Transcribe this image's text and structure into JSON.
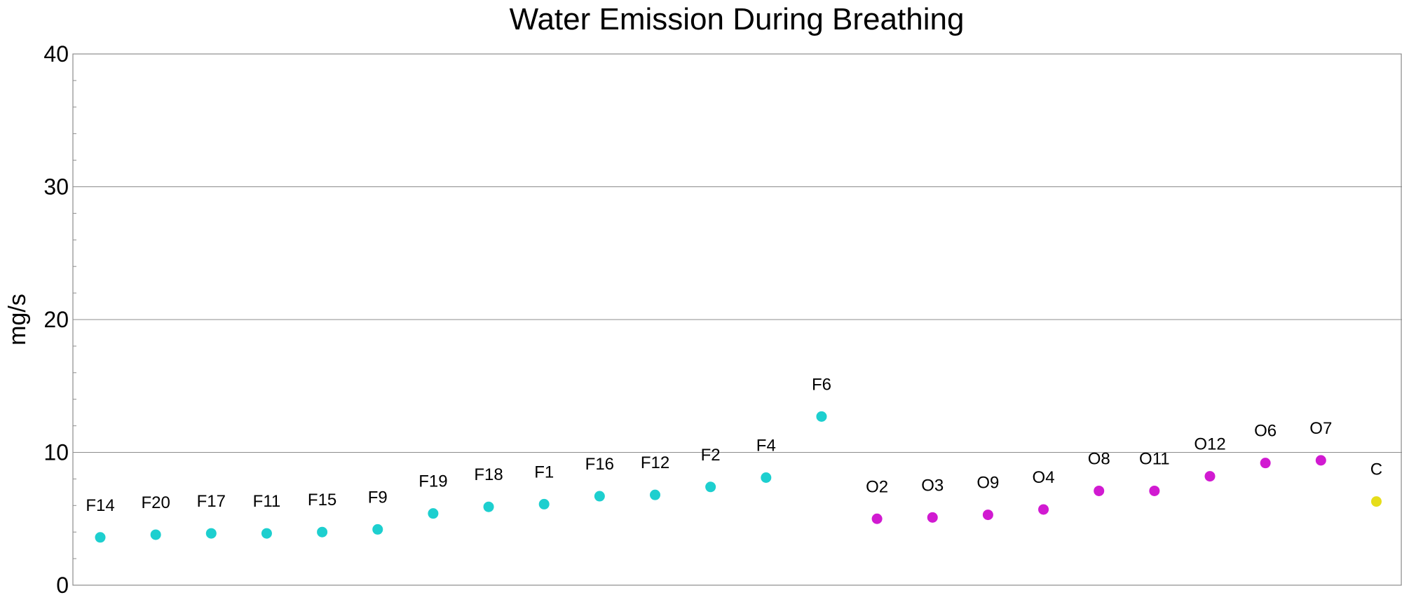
{
  "chart_data": {
    "type": "scatter",
    "title": "Water Emission During Breathing",
    "ylabel": "mg/s",
    "xlabel": "",
    "ylim": [
      0,
      40
    ],
    "yticks": [
      0,
      10,
      20,
      30,
      40
    ],
    "grid": true,
    "legend": "none",
    "colors": {
      "F": "#1dcfcf",
      "O": "#d11ad1",
      "C": "#e6dd1a"
    },
    "points": [
      {
        "label": "F14",
        "group": "F",
        "value": 3.6
      },
      {
        "label": "F20",
        "group": "F",
        "value": 3.8
      },
      {
        "label": "F17",
        "group": "F",
        "value": 3.9
      },
      {
        "label": "F11",
        "group": "F",
        "value": 3.9
      },
      {
        "label": "F15",
        "group": "F",
        "value": 4.0
      },
      {
        "label": "F9",
        "group": "F",
        "value": 4.2
      },
      {
        "label": "F19",
        "group": "F",
        "value": 5.4
      },
      {
        "label": "F18",
        "group": "F",
        "value": 5.9
      },
      {
        "label": "F1",
        "group": "F",
        "value": 6.1
      },
      {
        "label": "F16",
        "group": "F",
        "value": 6.7
      },
      {
        "label": "F12",
        "group": "F",
        "value": 6.8
      },
      {
        "label": "F2",
        "group": "F",
        "value": 7.4
      },
      {
        "label": "F4",
        "group": "F",
        "value": 8.1
      },
      {
        "label": "F6",
        "group": "F",
        "value": 12.7
      },
      {
        "label": "O2",
        "group": "O",
        "value": 5.0
      },
      {
        "label": "O3",
        "group": "O",
        "value": 5.1
      },
      {
        "label": "O9",
        "group": "O",
        "value": 5.3
      },
      {
        "label": "O4",
        "group": "O",
        "value": 5.7
      },
      {
        "label": "O8",
        "group": "O",
        "value": 7.1
      },
      {
        "label": "O11",
        "group": "O",
        "value": 7.1
      },
      {
        "label": "O12",
        "group": "O",
        "value": 8.2
      },
      {
        "label": "O6",
        "group": "O",
        "value": 9.2
      },
      {
        "label": "O7",
        "group": "O",
        "value": 9.4
      },
      {
        "label": "C",
        "group": "C",
        "value": 6.3
      }
    ]
  }
}
